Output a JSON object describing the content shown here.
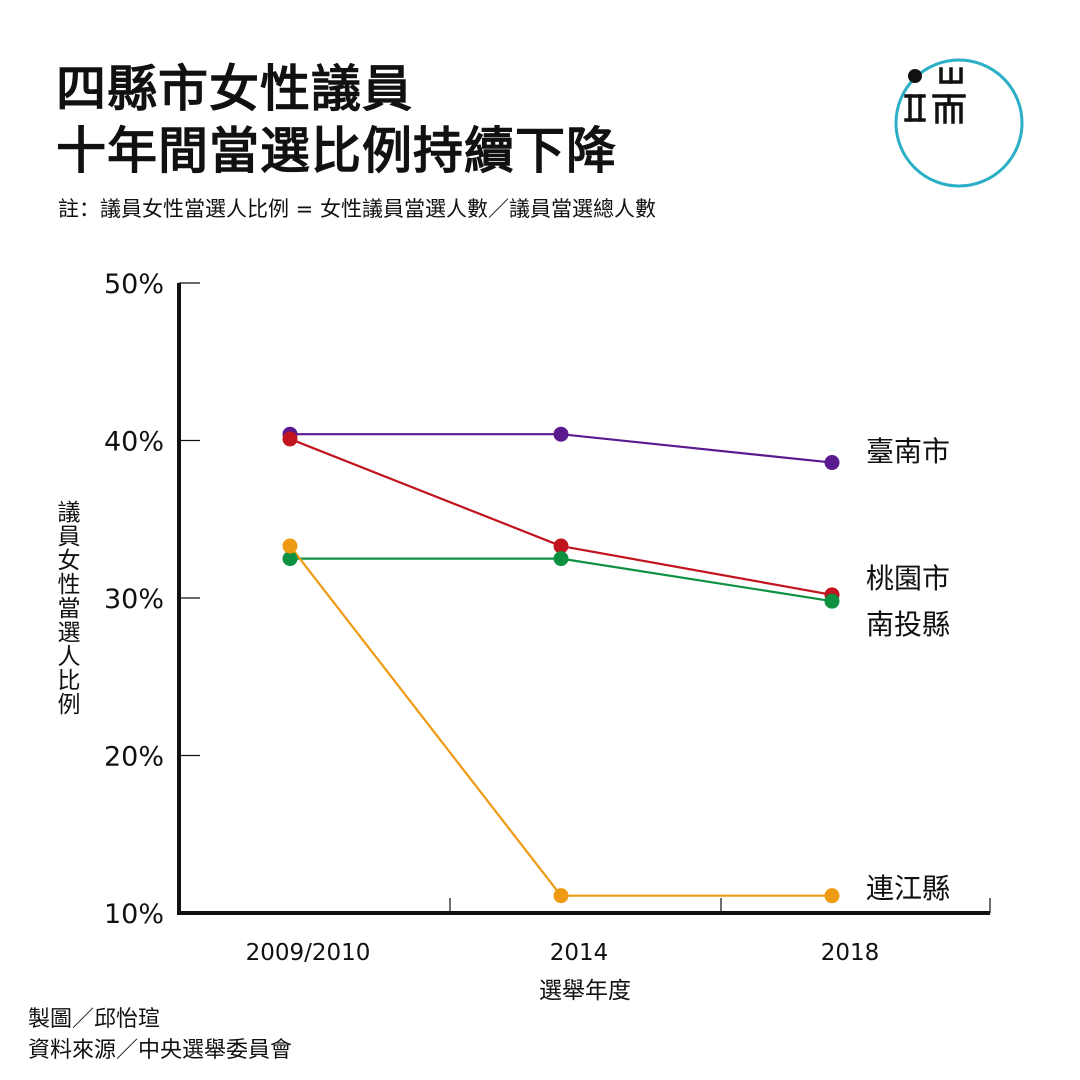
{
  "title": {
    "line1": "四縣市女性議員",
    "line2": "十年間當選比例持續下降"
  },
  "note": "註：議員女性當選人比例 = 女性議員當選人數／議員當選總人數",
  "logo": {
    "icon": "end-logo-icon",
    "ring_color": "#2BAFC6",
    "mark_color": "#111111"
  },
  "credits": {
    "chart_by": "製圖／邱怡瑄",
    "source": "資料來源／中央選舉委員會"
  },
  "chart_data": {
    "type": "line",
    "title": "",
    "xlabel": "選舉年度",
    "ylabel": "議員女性當選人比例",
    "categories": [
      "2009/2010",
      "2014",
      "2018"
    ],
    "ylim": [
      10,
      50
    ],
    "yticks": [
      "10%",
      "20%",
      "30%",
      "40%",
      "50%"
    ],
    "grid": false,
    "legend": "direct labels at right end",
    "series": [
      {
        "name": "臺南市",
        "color": "#5B1A8E",
        "values": [
          40.4,
          40.4,
          38.6
        ]
      },
      {
        "name": "桃園市",
        "color": "#C0141E",
        "values": [
          40.1,
          33.3,
          30.2
        ]
      },
      {
        "name": "南投縣",
        "color": "#0E9140",
        "values": [
          32.5,
          32.5,
          29.8
        ]
      },
      {
        "name": "連江縣",
        "color": "#EE9A12",
        "values": [
          33.3,
          11.1,
          11.1
        ]
      }
    ]
  }
}
